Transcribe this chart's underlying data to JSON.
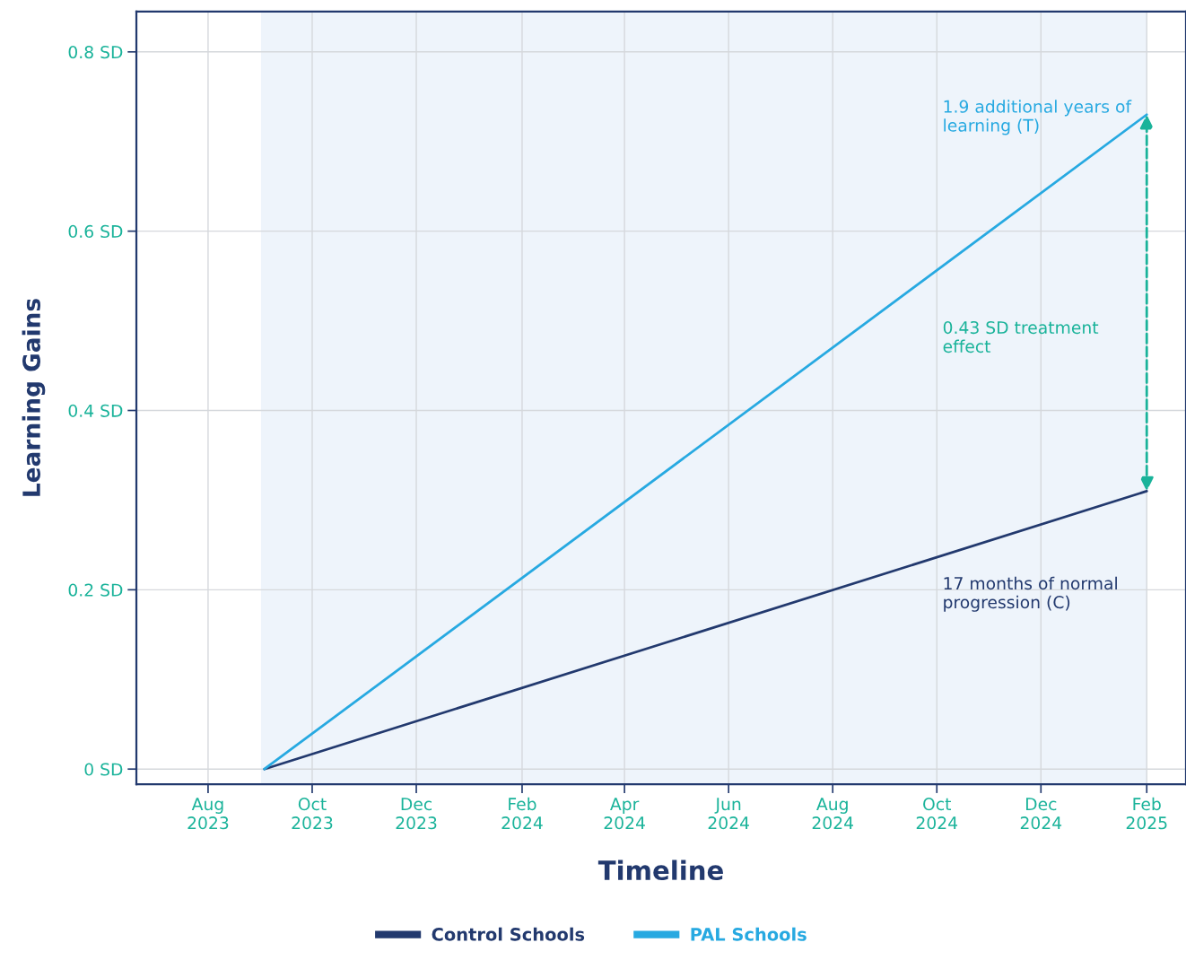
{
  "chart_data": {
    "type": "line",
    "xlabel": "Timeline",
    "ylabel": "Learning Gains",
    "series": [
      {
        "name": "Control Schools",
        "color": "#22396e",
        "x": [
          "2023-09-03",
          "2025-02-01"
        ],
        "values": [
          0,
          0.31
        ]
      },
      {
        "name": "PAL Schools",
        "color": "#27a9e1",
        "x": [
          "2023-09-03",
          "2025-02-01"
        ],
        "values": [
          0,
          0.73
        ]
      }
    ],
    "xlim": [
      "2023-06-20",
      "2025-02-24"
    ],
    "ylim": [
      -0.017,
      0.845
    ],
    "xticks": [
      {
        "value": "2023-08-01",
        "label": "Aug\n2023"
      },
      {
        "value": "2023-10-01",
        "label": "Oct\n2023"
      },
      {
        "value": "2023-12-01",
        "label": "Dec\n2023"
      },
      {
        "value": "2024-02-01",
        "label": "Feb\n2024"
      },
      {
        "value": "2024-04-01",
        "label": "Apr\n2024"
      },
      {
        "value": "2024-06-01",
        "label": "Jun\n2024"
      },
      {
        "value": "2024-08-01",
        "label": "Aug\n2024"
      },
      {
        "value": "2024-10-01",
        "label": "Oct\n2024"
      },
      {
        "value": "2024-12-01",
        "label": "Dec\n2024"
      },
      {
        "value": "2025-02-01",
        "label": "Feb\n2025"
      }
    ],
    "yticks": [
      {
        "value": 0,
        "label": "0 SD"
      },
      {
        "value": 0.2,
        "label": "0.2 SD"
      },
      {
        "value": 0.4,
        "label": "0.4 SD"
      },
      {
        "value": 0.6,
        "label": "0.6 SD"
      },
      {
        "value": 0.8,
        "label": "0.8 SD"
      }
    ],
    "bands": [
      {
        "axis": "x",
        "from": "2023-09-01",
        "to": "2025-02-01",
        "color": "#eef4fb"
      }
    ],
    "annotations": [
      {
        "text": "1.9 additional years of\nlearning (T)",
        "x": "2025-02-01",
        "y": 0.73
      },
      "0.43 SD treatment\neffect",
      "17 months of normal\nprogression (C)"
    ],
    "grid": true,
    "legend": "bottom",
    "line_style": "solid",
    "marker": "none"
  }
}
